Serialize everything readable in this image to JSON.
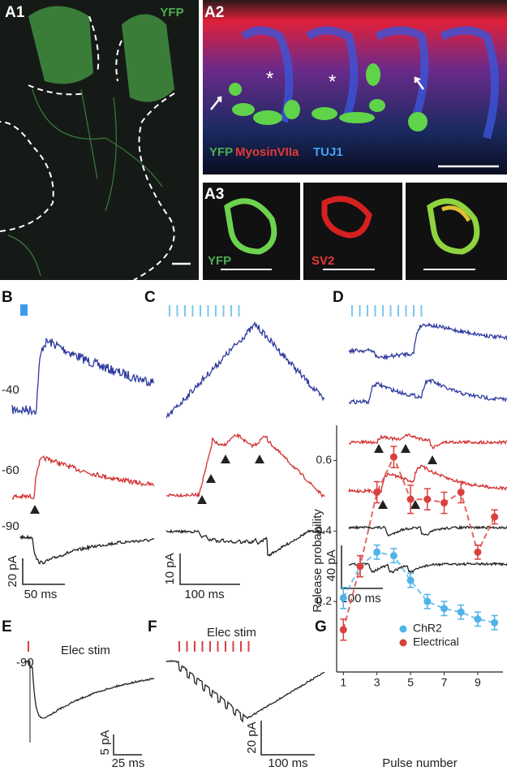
{
  "panels": {
    "a1": {
      "label": "A1",
      "stain": "YFP"
    },
    "a2": {
      "label": "A2",
      "legend": [
        "YFP",
        "MyosinVIIa",
        "TUJ1"
      ]
    },
    "a3": {
      "label": "A3",
      "stains": [
        "YFP",
        "SV2"
      ]
    },
    "b": {
      "label": "B",
      "potentials": [
        "-40",
        "-60",
        "-90"
      ],
      "scale_y": "20 pA",
      "scale_x": "50 ms"
    },
    "c": {
      "label": "C",
      "scale_y": "10 pA",
      "scale_x": "100 ms"
    },
    "d": {
      "label": "D",
      "scale_y": "40 pA",
      "scale_x": "100 ms"
    },
    "e": {
      "label": "E",
      "potential": "-90",
      "stim": "Elec stim",
      "scale_y": "5 pA",
      "scale_x": "25 ms"
    },
    "f": {
      "label": "F",
      "stim": "Elec stim",
      "scale_y": "20 pA",
      "scale_x": "100 ms"
    },
    "g": {
      "label": "G"
    }
  },
  "chart_data": {
    "type": "scatter",
    "xlabel": "Pulse number",
    "ylabel": "Release probability",
    "x": [
      1,
      2,
      3,
      4,
      5,
      6,
      7,
      8,
      9,
      10
    ],
    "series": [
      {
        "name": "ChR2",
        "color": "#4fb3e8",
        "values": [
          0.21,
          0.3,
          0.34,
          0.33,
          0.26,
          0.2,
          0.18,
          0.17,
          0.15,
          0.14
        ],
        "errors": [
          0.03,
          0.03,
          0.02,
          0.02,
          0.02,
          0.02,
          0.02,
          0.02,
          0.02,
          0.02
        ]
      },
      {
        "name": "Electrical",
        "color": "#d9413f",
        "values": [
          0.12,
          0.3,
          0.51,
          0.61,
          0.49,
          0.49,
          0.48,
          0.51,
          0.34,
          0.44
        ],
        "errors": [
          0.03,
          0.03,
          0.03,
          0.03,
          0.04,
          0.03,
          0.03,
          0.03,
          0.02,
          0.02
        ]
      }
    ],
    "xlim": [
      0.6,
      10.5
    ],
    "xticks": [
      1,
      3,
      5,
      7,
      9
    ],
    "ylim": [
      0,
      0.7
    ],
    "yticks": [
      0.2,
      0.4,
      0.6
    ],
    "legend": "upper right"
  }
}
